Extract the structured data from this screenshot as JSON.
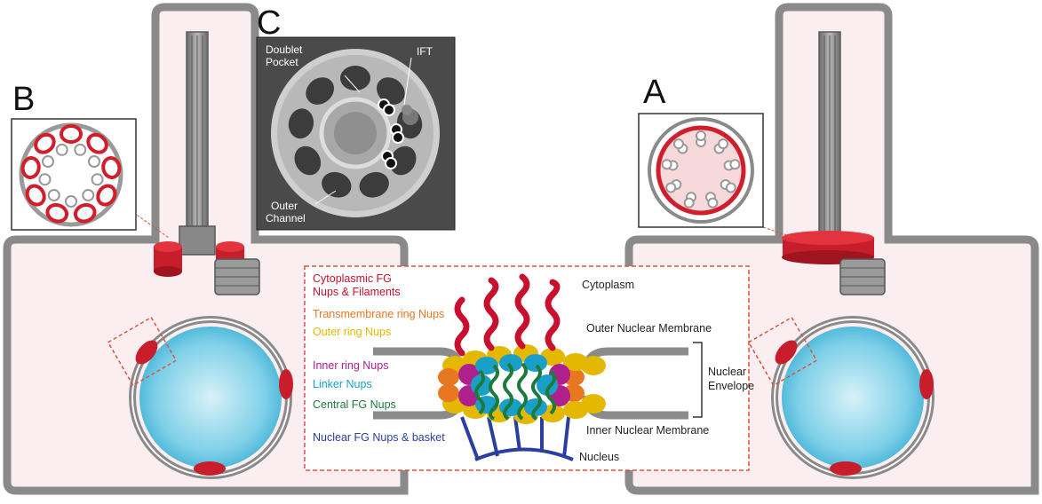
{
  "panels": {
    "a": "A",
    "b": "B",
    "c": "C"
  },
  "micrograph": {
    "doublet_pocket_1": "Doublet",
    "doublet_pocket_2": "Pocket",
    "ift": "IFT",
    "outer_channel_1": "Outer",
    "outer_channel_2": "Channel"
  },
  "npc_labels": {
    "cytoplasmic_fg_1": "Cytoplasmic FG",
    "cytoplasmic_fg_2": "Nups & Filaments",
    "transmembrane": "Transmembrane ring Nups",
    "outer_ring": "Outer ring Nups",
    "inner_ring": "Inner ring Nups",
    "linker": "Linker Nups",
    "central_fg": "Central FG Nups",
    "nuclear_fg": "Nuclear FG Nups & basket",
    "cytoplasm": "Cytoplasm",
    "outer_membrane": "Outer Nuclear Membrane",
    "nuclear_envelope_1": "Nuclear",
    "nuclear_envelope_2": "Envelope",
    "inner_membrane": "Inner Nuclear Membrane",
    "nucleus": "Nucleus"
  },
  "colors": {
    "cytoplasmic_fg": "#c8102e",
    "transmembrane": "#e87722",
    "outer_ring": "#e5b800",
    "inner_ring": "#b0208c",
    "linker": "#1aa0c8",
    "central_fg": "#1e7a3c",
    "nuclear_fg": "#2a3fa0",
    "membrane": "#8a8a8a",
    "cell_fill": "#fbeef0",
    "pore_red": "#d01e2b",
    "nucleus_blue": "#5fc7e3"
  }
}
